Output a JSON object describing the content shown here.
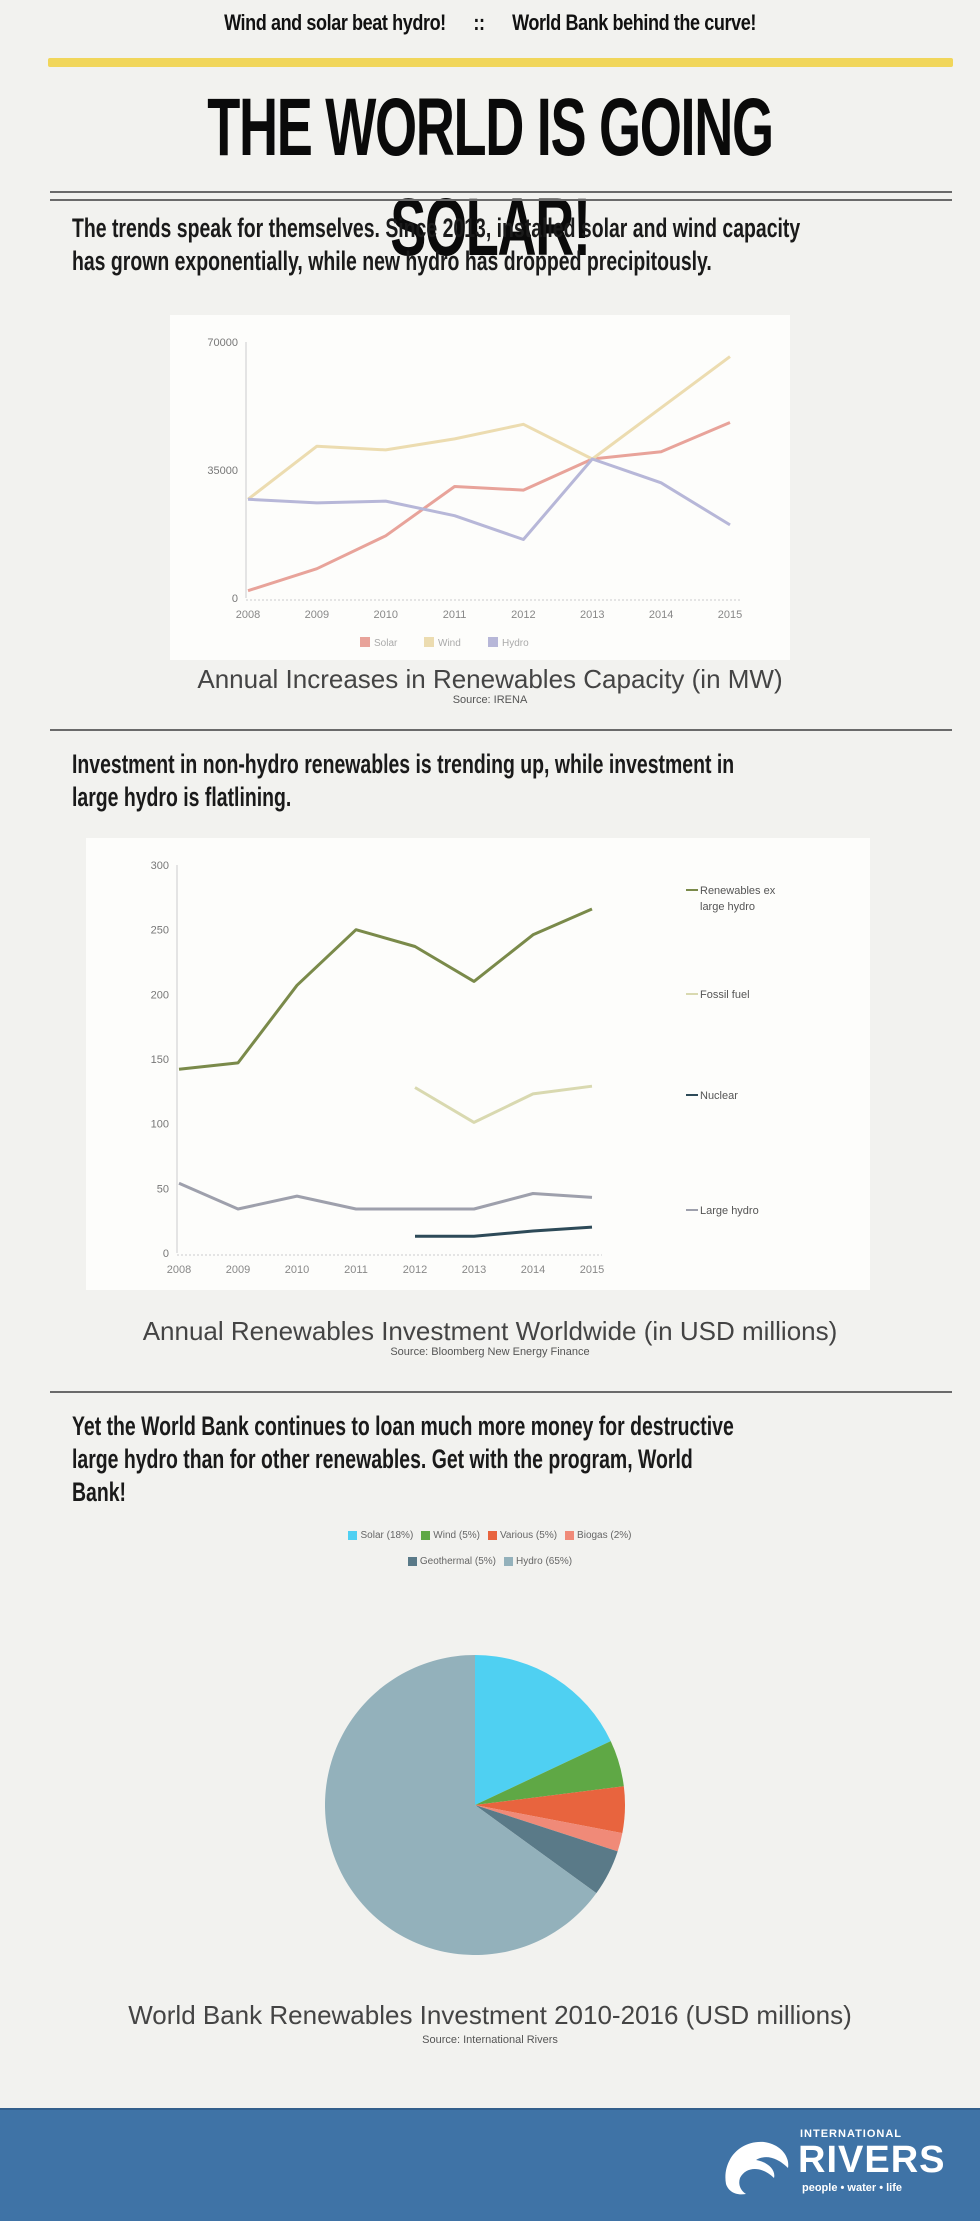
{
  "header": {
    "tagline_left": "Wind and solar beat hydro!",
    "tagline_sep": "::",
    "tagline_right": "World Bank behind the curve!",
    "headline": "THE WORLD IS GOING SOLAR!"
  },
  "section1": {
    "text_line1": "The trends speak for themselves. Since 2013, installed solar and wind capacity",
    "text_line2": "has grown exponentially, while new hydro has dropped precipitously.",
    "title": "Annual Increases in Renewables Capacity (in MW)",
    "source": "Source: IRENA"
  },
  "section2": {
    "text_line1": "Investment in non-hydro renewables is trending up, while investment in",
    "text_line2": "large hydro is flatlining.",
    "title": "Annual Renewables Investment Worldwide (in USD millions)",
    "source": "Source: Bloomberg New Energy Finance"
  },
  "section3": {
    "text_line1": "Yet the World Bank continues to loan much more money for destructive",
    "text_line2": "large hydro than for other renewables. Get with the program, World",
    "text_line3": "Bank!",
    "title": "World Bank Renewables Investment 2010-2016 (USD millions)",
    "source": "Source: International Rivers"
  },
  "footer": {
    "org_top": "INTERNATIONAL",
    "org_main": "RIVERS",
    "org_tagline": "people • water • life",
    "bg_color": "#3f73a6"
  },
  "chart_data": [
    {
      "type": "line",
      "title": "Annual Increases in Renewables Capacity (in MW)",
      "source": "Source: IRENA",
      "xlabel": "",
      "ylabel": "",
      "ylim": [
        0,
        70000
      ],
      "yticks": [
        0,
        35000,
        70000
      ],
      "ytick_labels": [
        "0",
        "35000",
        "70000"
      ],
      "categories": [
        "2008",
        "2009",
        "2010",
        "2011",
        "2012",
        "2013",
        "2014",
        "2015"
      ],
      "legend_position": "bottom",
      "grid": false,
      "series": [
        {
          "name": "Solar",
          "color": "#e8a39a",
          "values": [
            2000,
            8000,
            17000,
            30500,
            29500,
            38000,
            40000,
            48000
          ]
        },
        {
          "name": "Wind",
          "color": "#ecdcb0",
          "values": [
            27000,
            41500,
            40500,
            43500,
            47500,
            38000,
            52000,
            66000
          ]
        },
        {
          "name": "Hydro",
          "color": "#b7b7d8",
          "values": [
            27000,
            26000,
            26500,
            22500,
            16000,
            38000,
            31500,
            20000
          ]
        }
      ]
    },
    {
      "type": "line",
      "title": "Annual Renewables Investment Worldwide (in USD millions)",
      "source": "Source: Bloomberg New Energy Finance",
      "xlabel": "",
      "ylabel": "",
      "ylim": [
        0,
        300
      ],
      "yticks": [
        0,
        50,
        100,
        150,
        200,
        250,
        300
      ],
      "ytick_labels": [
        "0",
        "50",
        "100",
        "150",
        "200",
        "250",
        "300"
      ],
      "categories": [
        "2008",
        "2009",
        "2010",
        "2011",
        "2012",
        "2013",
        "2014",
        "2015"
      ],
      "legend_position": "right",
      "grid": false,
      "series": [
        {
          "name": "Renewables ex large hydro",
          "color": "#7a8a4a",
          "values": [
            142,
            147,
            207,
            250,
            237,
            210,
            246,
            266
          ]
        },
        {
          "name": "Fossil fuel",
          "color": "#d9d9b0",
          "values": [
            null,
            null,
            null,
            null,
            128,
            101,
            123,
            129
          ]
        },
        {
          "name": "Nuclear",
          "color": "#2d4a58",
          "values": [
            null,
            null,
            null,
            null,
            13,
            13,
            17,
            20
          ]
        },
        {
          "name": "Large hydro",
          "color": "#9ea0ac",
          "values": [
            54,
            34,
            44,
            34,
            34,
            34,
            46,
            43
          ]
        }
      ]
    },
    {
      "type": "pie",
      "title": "World Bank Renewables Investment 2010-2016 (USD millions)",
      "source": "Source: International Rivers",
      "legend_position": "top",
      "categories": [
        "Solar (18%)",
        "Wind (5%)",
        "Various (5%)",
        "Biogas (2%)",
        "Geothermal (5%)",
        "Hydro (65%)"
      ],
      "labels": [
        "Solar",
        "Wind",
        "Various",
        "Biogas",
        "Geothermal",
        "Hydro"
      ],
      "values": [
        18,
        5,
        5,
        2,
        5,
        65
      ],
      "colors": [
        "#4fd0f2",
        "#5fa845",
        "#e8643e",
        "#f08a78",
        "#5a7a88",
        "#93b1bb"
      ]
    }
  ]
}
